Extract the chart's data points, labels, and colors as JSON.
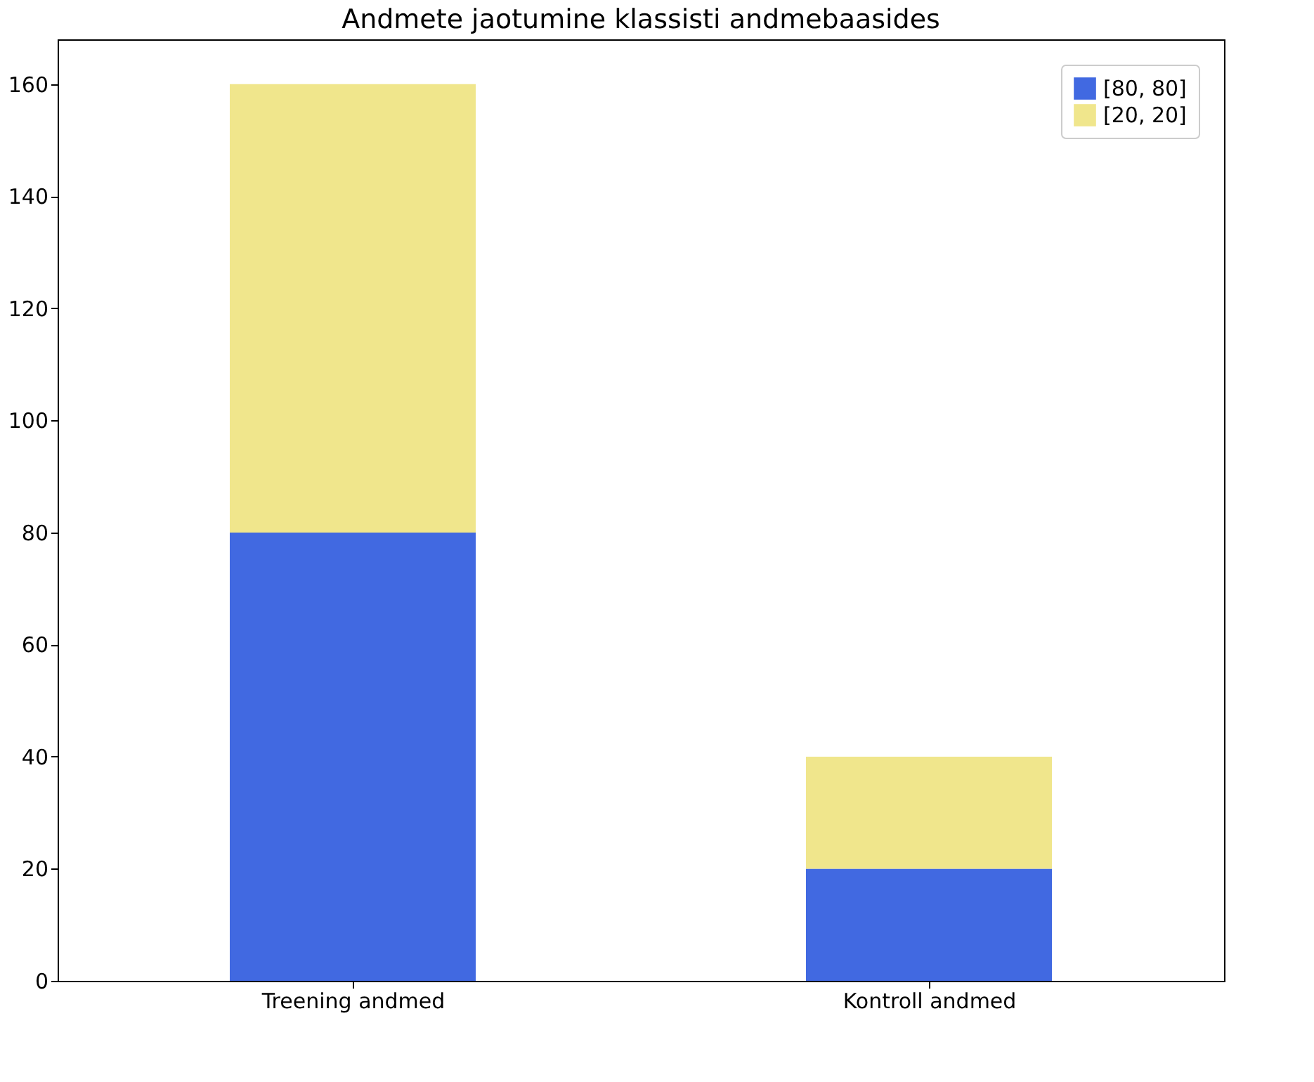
{
  "chart_data": {
    "type": "bar",
    "title": "Andmete jaotumine klassisti andmebaasides",
    "categories": [
      "Treening andmed",
      "Kontroll andmed"
    ],
    "stacked": true,
    "series": [
      {
        "name": "[80, 80]",
        "color": "#4169e1",
        "values": [
          80,
          20
        ]
      },
      {
        "name": "[20, 20]",
        "color": "#f0e68c",
        "values": [
          80,
          20
        ]
      }
    ],
    "ylim": [
      0,
      168
    ],
    "yticks": [
      0,
      20,
      40,
      60,
      80,
      100,
      120,
      140,
      160
    ],
    "grid": false,
    "legend": "top right"
  }
}
